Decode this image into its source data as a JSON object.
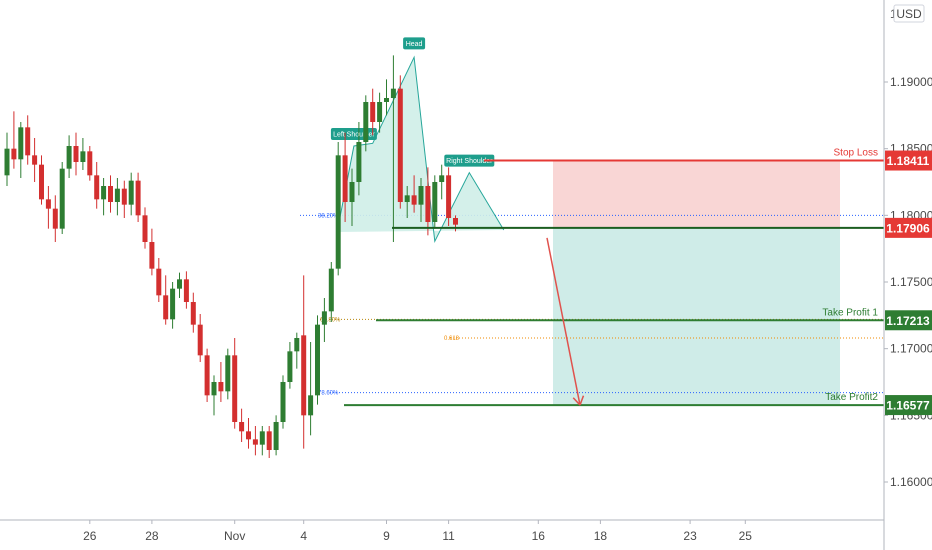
{
  "chart_data": {
    "type": "candlestick",
    "currency": "USD",
    "y_ticks": [
      1.19,
      1.185,
      1.18,
      1.175,
      1.17,
      1.165,
      1.16
    ],
    "y_tick_labels": [
      "1.19000",
      "1.18500",
      "1.18000",
      "1.17500",
      "1.17000",
      "1.16500",
      "1.16000"
    ],
    "top_tick_label": "1.1",
    "ylim": [
      1.1545,
      1.1975
    ],
    "x_ticks": [
      {
        "label": "26",
        "index": 12
      },
      {
        "label": "28",
        "index": 21
      },
      {
        "label": "Nov",
        "index": 33
      },
      {
        "label": "4",
        "index": 43
      },
      {
        "label": "9",
        "index": 55
      },
      {
        "label": "11",
        "index": 64
      },
      {
        "label": "16",
        "index": 77
      },
      {
        "label": "18",
        "index": 86
      },
      {
        "label": "23",
        "index": 99
      },
      {
        "label": "25",
        "index": 107
      }
    ],
    "candles": [
      [
        1.183,
        1.1862,
        1.1822,
        1.185
      ],
      [
        1.185,
        1.1878,
        1.1835,
        1.1842
      ],
      [
        1.1842,
        1.187,
        1.1828,
        1.1866
      ],
      [
        1.1866,
        1.1875,
        1.1838,
        1.1845
      ],
      [
        1.1845,
        1.1858,
        1.1825,
        1.1838
      ],
      [
        1.1838,
        1.1845,
        1.1808,
        1.1812
      ],
      [
        1.1812,
        1.1822,
        1.179,
        1.1805
      ],
      [
        1.1805,
        1.1815,
        1.178,
        1.179
      ],
      [
        1.179,
        1.184,
        1.1786,
        1.1835
      ],
      [
        1.1835,
        1.186,
        1.1828,
        1.1852
      ],
      [
        1.1852,
        1.1862,
        1.183,
        1.184
      ],
      [
        1.184,
        1.1858,
        1.1834,
        1.1848
      ],
      [
        1.1848,
        1.1852,
        1.1826,
        1.183
      ],
      [
        1.183,
        1.184,
        1.1805,
        1.1812
      ],
      [
        1.1812,
        1.1828,
        1.18,
        1.1822
      ],
      [
        1.1822,
        1.183,
        1.1802,
        1.181
      ],
      [
        1.181,
        1.1828,
        1.18,
        1.182
      ],
      [
        1.182,
        1.1826,
        1.1798,
        1.1808
      ],
      [
        1.1808,
        1.1832,
        1.18,
        1.1826
      ],
      [
        1.1826,
        1.1832,
        1.1795,
        1.18
      ],
      [
        1.18,
        1.1806,
        1.1775,
        1.178
      ],
      [
        1.178,
        1.179,
        1.1755,
        1.176
      ],
      [
        1.176,
        1.1768,
        1.1735,
        1.174
      ],
      [
        1.174,
        1.1755,
        1.1718,
        1.1722
      ],
      [
        1.1722,
        1.175,
        1.1715,
        1.1745
      ],
      [
        1.1745,
        1.1757,
        1.1738,
        1.1752
      ],
      [
        1.1752,
        1.1758,
        1.173,
        1.1735
      ],
      [
        1.1735,
        1.1742,
        1.1712,
        1.1718
      ],
      [
        1.1718,
        1.1726,
        1.169,
        1.1695
      ],
      [
        1.1695,
        1.17,
        1.166,
        1.1665
      ],
      [
        1.1665,
        1.168,
        1.165,
        1.1675
      ],
      [
        1.1675,
        1.169,
        1.166,
        1.1668
      ],
      [
        1.1668,
        1.17,
        1.1662,
        1.1695
      ],
      [
        1.1695,
        1.1708,
        1.164,
        1.1645
      ],
      [
        1.1645,
        1.1655,
        1.163,
        1.1638
      ],
      [
        1.1638,
        1.1648,
        1.1625,
        1.1632
      ],
      [
        1.1632,
        1.1642,
        1.162,
        1.1628
      ],
      [
        1.1628,
        1.1642,
        1.162,
        1.1638
      ],
      [
        1.1638,
        1.1642,
        1.1618,
        1.1624
      ],
      [
        1.1624,
        1.165,
        1.162,
        1.1645
      ],
      [
        1.1645,
        1.168,
        1.164,
        1.1675
      ],
      [
        1.1675,
        1.1705,
        1.167,
        1.1698
      ],
      [
        1.1698,
        1.1712,
        1.1685,
        1.1708
      ],
      [
        1.171,
        1.1755,
        1.1625,
        1.165
      ],
      [
        1.165,
        1.1705,
        1.1635,
        1.1665
      ],
      [
        1.1665,
        1.1725,
        1.1658,
        1.1718
      ],
      [
        1.1718,
        1.1738,
        1.1705,
        1.1728
      ],
      [
        1.1728,
        1.1765,
        1.172,
        1.176
      ],
      [
        1.176,
        1.1855,
        1.1755,
        1.1845
      ],
      [
        1.1845,
        1.1862,
        1.1795,
        1.181
      ],
      [
        1.181,
        1.1835,
        1.1792,
        1.1825
      ],
      [
        1.1825,
        1.187,
        1.1815,
        1.1855
      ],
      [
        1.1855,
        1.189,
        1.1848,
        1.1885
      ],
      [
        1.1885,
        1.1895,
        1.186,
        1.187
      ],
      [
        1.187,
        1.1892,
        1.1862,
        1.1885
      ],
      [
        1.1885,
        1.1902,
        1.1875,
        1.1888
      ],
      [
        1.1888,
        1.192,
        1.178,
        1.1895
      ],
      [
        1.1895,
        1.1905,
        1.1805,
        1.181
      ],
      [
        1.181,
        1.1822,
        1.1798,
        1.1815
      ],
      [
        1.1815,
        1.183,
        1.1802,
        1.1808
      ],
      [
        1.1808,
        1.1828,
        1.1795,
        1.1822
      ],
      [
        1.1822,
        1.1836,
        1.1785,
        1.1795
      ],
      [
        1.1795,
        1.183,
        1.179,
        1.1825
      ],
      [
        1.1825,
        1.1838,
        1.1812,
        1.183
      ],
      [
        1.183,
        1.1836,
        1.1792,
        1.1798
      ],
      [
        1.1798,
        1.18,
        1.1788,
        1.1793
      ]
    ],
    "fib_levels": [
      {
        "label": "38.20%",
        "value": 1.18
      },
      {
        "label": "61.80%",
        "value": 1.1722
      },
      {
        "label": "0.618",
        "value": 1.1708
      },
      {
        "label": "78.60%",
        "value": 1.1667
      }
    ],
    "pattern_labels": [
      "Left Shoulder",
      "Head",
      "Right Shoulder"
    ],
    "levels": [
      {
        "name": "Stop Loss",
        "price": "1.18411",
        "value": 1.18411,
        "color": "#e53935"
      },
      {
        "name": "",
        "price": "1.17906",
        "value": 1.17906,
        "color": "#e53935"
      },
      {
        "name": "Take Profit 1",
        "price": "1.17213",
        "value": 1.17213,
        "color": "#2e7d32"
      },
      {
        "name": "Take Profit2",
        "price": "1.16577",
        "value": 1.16577,
        "color": "#2e7d32"
      }
    ],
    "colors": {
      "bull": "#2e7d32",
      "bear": "#d32f2f",
      "stop_zone": "#f9d6d5",
      "profit_zone": "#cfece8",
      "pattern_fill": "#cfeee8",
      "pattern_line": "#26a69a",
      "label_bg": "#1e9e8c"
    }
  }
}
